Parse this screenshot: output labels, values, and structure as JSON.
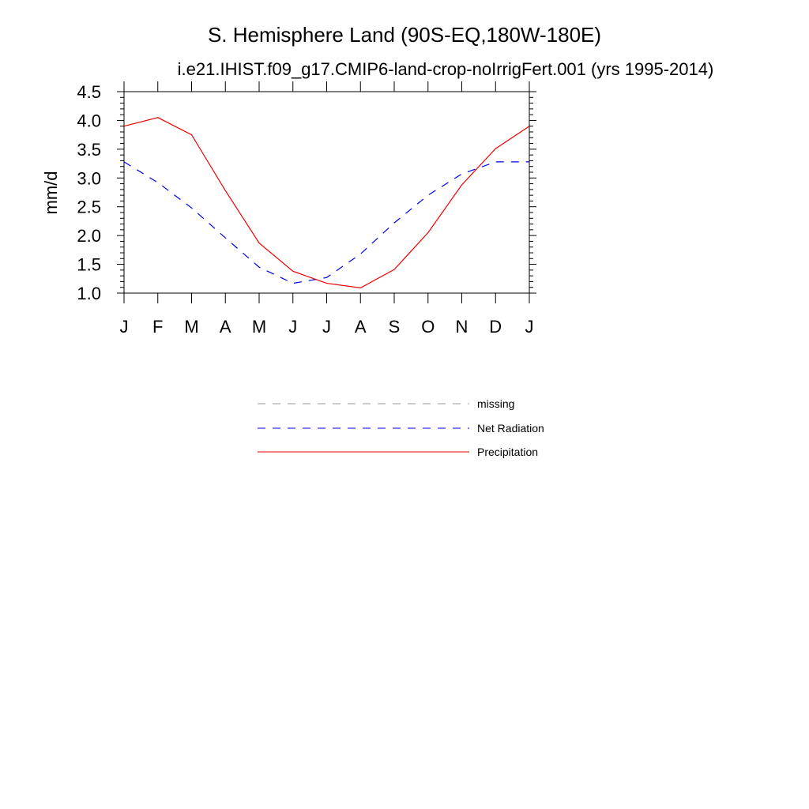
{
  "chart_data": {
    "type": "line",
    "title": "S. Hemisphere Land (90S-EQ,180W-180E)",
    "subtitle": "i.e21.IHIST.f09_g17.CMIP6-land-crop-noIrrigFert.001 (yrs 1995-2014)",
    "ylabel": "mm/d",
    "xlabel": "",
    "x_tick_labels": [
      "J",
      "F",
      "M",
      "A",
      "M",
      "J",
      "J",
      "A",
      "S",
      "O",
      "N",
      "D",
      "J"
    ],
    "ylim": [
      1.0,
      4.5
    ],
    "y_ticks": [
      "1.0",
      "1.5",
      "2.0",
      "2.5",
      "3.0",
      "3.5",
      "4.0",
      "4.5"
    ],
    "grid": false,
    "legend_position": "bottom-center",
    "series": [
      {
        "name": "missing",
        "color": "#9a9a9a",
        "dash": "dashed",
        "values": []
      },
      {
        "name": "Net Radiation",
        "color": "#0000ee",
        "dash": "dashed",
        "values": [
          3.28,
          2.92,
          2.48,
          1.96,
          1.45,
          1.17,
          1.27,
          1.68,
          2.22,
          2.7,
          3.07,
          3.28,
          3.28
        ]
      },
      {
        "name": "Precipitation",
        "color": "#ee0000",
        "dash": "solid",
        "values": [
          3.9,
          4.05,
          3.75,
          2.78,
          1.87,
          1.38,
          1.17,
          1.09,
          1.41,
          2.05,
          2.88,
          3.51,
          3.9
        ]
      }
    ]
  }
}
